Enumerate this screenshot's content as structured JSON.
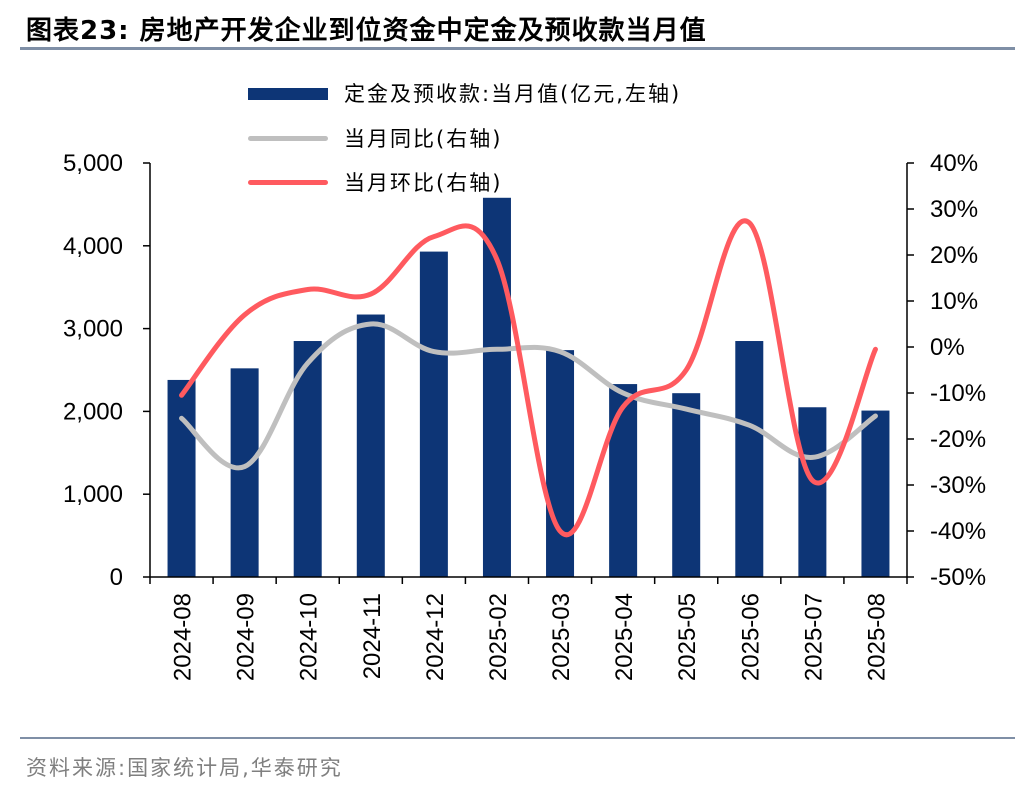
{
  "header": {
    "title": "图表23:  房地产开发企业到位资金中定金及预收款当月值"
  },
  "footer": {
    "source": "资料来源:国家统计局,华泰研究"
  },
  "legend": {
    "bar_label": "定金及预收款:当月值(亿元,左轴)",
    "yoy_label": "当月同比(右轴)",
    "mom_label": "当月环比(右轴)"
  },
  "colors": {
    "bar": "#0d3576",
    "yoy": "#bfbfbf",
    "mom": "#ff5a5f",
    "axis": "#000000"
  },
  "chart_data": {
    "type": "bar+line",
    "categories": [
      "2024-08",
      "2024-09",
      "2024-10",
      "2024-11",
      "2024-12",
      "2025-02",
      "2025-03",
      "2025-04",
      "2025-05",
      "2025-06",
      "2025-07",
      "2025-08"
    ],
    "series": [
      {
        "name": "定金及预收款:当月值(亿元,左轴)",
        "type": "bar",
        "axis": "left",
        "values": [
          2380,
          2520,
          2850,
          3170,
          3930,
          4580,
          2740,
          2330,
          2220,
          2850,
          2050,
          2010
        ]
      },
      {
        "name": "当月同比(右轴)",
        "type": "line",
        "axis": "right",
        "values": [
          -15.5,
          -26,
          -3.5,
          5,
          -1,
          -0.5,
          -1,
          -10,
          -13.5,
          -17,
          -24,
          -15
        ]
      },
      {
        "name": "当月环比(右轴)",
        "type": "line",
        "axis": "right",
        "values": [
          -10.5,
          7,
          12.5,
          11.5,
          24,
          19,
          -40,
          -13,
          -5,
          27,
          -29,
          -0.5
        ]
      }
    ],
    "left_axis": {
      "ylim": [
        0,
        5000
      ],
      "ticks": [
        "0",
        "1,000",
        "2,000",
        "3,000",
        "4,000",
        "5,000"
      ]
    },
    "right_axis": {
      "ylim": [
        -50,
        40
      ],
      "ticks": [
        "-50%",
        "-40%",
        "-30%",
        "-20%",
        "-10%",
        "0%",
        "10%",
        "20%",
        "30%",
        "40%"
      ]
    },
    "grid": false,
    "legend_position": "top"
  }
}
